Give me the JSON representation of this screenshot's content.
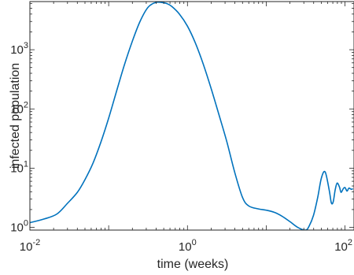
{
  "chart_data": {
    "type": "line",
    "title": "",
    "xlabel": "time (weeks)",
    "ylabel": "infected population",
    "xscale": "log",
    "yscale": "log",
    "xlim": [
      0.01,
      130
    ],
    "ylim": [
      0.9,
      6500
    ],
    "grid": false,
    "legend": "none",
    "x_ticks": [
      {
        "value": 0.01,
        "base": "10",
        "exp": "-2"
      },
      {
        "value": 1,
        "base": "10",
        "exp": "0"
      },
      {
        "value": 100,
        "base": "10",
        "exp": "2"
      }
    ],
    "y_ticks": [
      {
        "value": 1,
        "base": "10",
        "exp": "0"
      },
      {
        "value": 10,
        "base": "10",
        "exp": "1"
      },
      {
        "value": 100,
        "base": "10",
        "exp": "2"
      },
      {
        "value": 1000,
        "base": "10",
        "exp": "3"
      }
    ],
    "series": [
      {
        "color": "#0072BD",
        "x": [
          0.01,
          0.015,
          0.022,
          0.03,
          0.04,
          0.05,
          0.063,
          0.08,
          0.1,
          0.126,
          0.158,
          0.2,
          0.25,
          0.316,
          0.4,
          0.5,
          0.55,
          0.63,
          0.79,
          1.0,
          1.26,
          1.58,
          2.0,
          2.51,
          3.16,
          3.98,
          5.0,
          6.0,
          7.94,
          10.0,
          12.6,
          15.8,
          20.0,
          25.1,
          31.6,
          35.0,
          39.8,
          45,
          50.1,
          56,
          63.1,
          67,
          70.8,
          75,
          79.4,
          85,
          89.1,
          95,
          100,
          106,
          112,
          120,
          126
        ],
        "y": [
          1.2,
          1.38,
          1.68,
          2.55,
          3.9,
          6.4,
          12,
          28,
          70,
          200,
          550,
          1400,
          3000,
          5200,
          6300,
          6200,
          6000,
          5400,
          4000,
          2500,
          1300,
          580,
          220,
          80,
          28,
          8.5,
          3.2,
          2.3,
          2.05,
          1.95,
          1.8,
          1.55,
          1.25,
          1.0,
          0.9,
          1.05,
          1.6,
          3.2,
          6.8,
          8.6,
          4.2,
          2.6,
          2.7,
          4.3,
          5.6,
          4.8,
          3.9,
          4.5,
          4.7,
          4.1,
          4.6,
          4.4,
          4.5
        ]
      }
    ]
  }
}
